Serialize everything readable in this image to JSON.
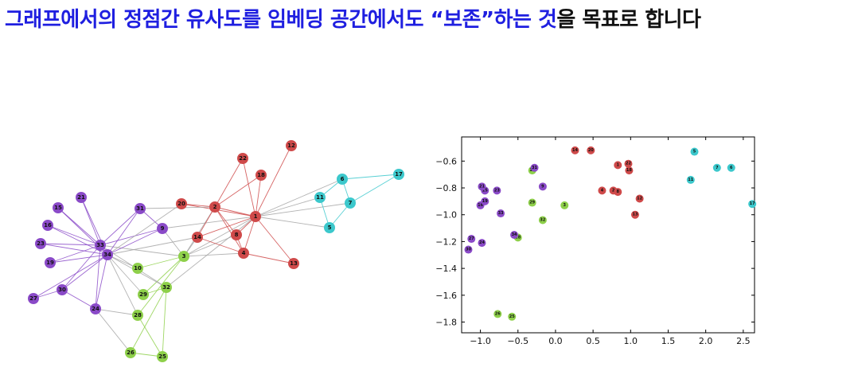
{
  "title": {
    "blue": "그래프에서의 정점간 유사도를 임베딩 공간에서도 “보존”하는 것",
    "black": "을 목표로 합니다"
  },
  "colors": {
    "red": "#cf4a4a",
    "cyan": "#3cc8cc",
    "purple": "#8a4ac8",
    "green": "#8ed04a",
    "gray": "#a6a6a6",
    "title_blue": "#1f1fe0"
  },
  "graph": {
    "nodes": [
      {
        "id": "1",
        "group": "red"
      },
      {
        "id": "2",
        "group": "red"
      },
      {
        "id": "3",
        "group": "green"
      },
      {
        "id": "4",
        "group": "red"
      },
      {
        "id": "5",
        "group": "cyan"
      },
      {
        "id": "6",
        "group": "cyan"
      },
      {
        "id": "7",
        "group": "cyan"
      },
      {
        "id": "8",
        "group": "red"
      },
      {
        "id": "9",
        "group": "purple"
      },
      {
        "id": "10",
        "group": "green"
      },
      {
        "id": "11",
        "group": "cyan"
      },
      {
        "id": "12",
        "group": "red"
      },
      {
        "id": "13",
        "group": "red"
      },
      {
        "id": "14",
        "group": "red"
      },
      {
        "id": "15",
        "group": "purple"
      },
      {
        "id": "16",
        "group": "purple"
      },
      {
        "id": "17",
        "group": "cyan"
      },
      {
        "id": "18",
        "group": "red"
      },
      {
        "id": "19",
        "group": "purple"
      },
      {
        "id": "20",
        "group": "red"
      },
      {
        "id": "21",
        "group": "purple"
      },
      {
        "id": "22",
        "group": "red"
      },
      {
        "id": "23",
        "group": "purple"
      },
      {
        "id": "24",
        "group": "purple"
      },
      {
        "id": "25",
        "group": "green"
      },
      {
        "id": "26",
        "group": "green"
      },
      {
        "id": "27",
        "group": "purple"
      },
      {
        "id": "28",
        "group": "green"
      },
      {
        "id": "29",
        "group": "green"
      },
      {
        "id": "30",
        "group": "purple"
      },
      {
        "id": "31",
        "group": "purple"
      },
      {
        "id": "32",
        "group": "green"
      },
      {
        "id": "33",
        "group": "purple"
      },
      {
        "id": "34",
        "group": "purple"
      }
    ]
  },
  "chart_data": {
    "type": "scatter",
    "xlim": [
      -1.25,
      2.65
    ],
    "ylim": [
      -1.88,
      -0.42
    ],
    "xticks": [
      -1.0,
      -0.5,
      0.0,
      0.5,
      1.0,
      1.5,
      2.0,
      2.5
    ],
    "xtick_labels": [
      "−1.0",
      "−0.5",
      "0.0",
      "0.5",
      "1.0",
      "1.5",
      "2.0",
      "2.5"
    ],
    "yticks": [
      -0.6,
      -0.8,
      -1.0,
      -1.2,
      -1.4,
      -1.6,
      -1.8
    ],
    "ytick_labels": [
      "−0.6",
      "−0.8",
      "−1.0",
      "−1.2",
      "−1.4",
      "−1.6",
      "−1.8"
    ],
    "grid": false,
    "points": [
      {
        "label": "1",
        "x": 0.83,
        "y": -0.63,
        "group": "red"
      },
      {
        "label": "2",
        "x": 0.77,
        "y": -0.82,
        "group": "red"
      },
      {
        "label": "3",
        "x": 0.12,
        "y": -0.93,
        "group": "green"
      },
      {
        "label": "4",
        "x": 0.62,
        "y": -0.82,
        "group": "red"
      },
      {
        "label": "5",
        "x": 1.85,
        "y": -0.53,
        "group": "cyan"
      },
      {
        "label": "6",
        "x": 2.34,
        "y": -0.65,
        "group": "cyan"
      },
      {
        "label": "7",
        "x": 2.15,
        "y": -0.65,
        "group": "cyan"
      },
      {
        "label": "8",
        "x": 0.83,
        "y": -0.83,
        "group": "red"
      },
      {
        "label": "9",
        "x": -0.17,
        "y": -0.79,
        "group": "purple"
      },
      {
        "label": "10",
        "x": -0.31,
        "y": -0.67,
        "group": "green"
      },
      {
        "label": "11",
        "x": 1.8,
        "y": -0.74,
        "group": "cyan"
      },
      {
        "label": "12",
        "x": 1.12,
        "y": -0.88,
        "group": "red"
      },
      {
        "label": "13",
        "x": 1.06,
        "y": -1.0,
        "group": "red"
      },
      {
        "label": "14",
        "x": 0.26,
        "y": -0.52,
        "group": "red"
      },
      {
        "label": "15",
        "x": -0.94,
        "y": -0.82,
        "group": "purple"
      },
      {
        "label": "16",
        "x": -1.0,
        "y": -0.93,
        "group": "purple"
      },
      {
        "label": "17",
        "x": 2.62,
        "y": -0.92,
        "group": "cyan"
      },
      {
        "label": "18",
        "x": 0.98,
        "y": -0.67,
        "group": "red"
      },
      {
        "label": "19",
        "x": -0.94,
        "y": -0.9,
        "group": "purple"
      },
      {
        "label": "20",
        "x": 0.47,
        "y": -0.52,
        "group": "red"
      },
      {
        "label": "21",
        "x": -0.98,
        "y": -0.79,
        "group": "purple"
      },
      {
        "label": "22",
        "x": 0.97,
        "y": -0.62,
        "group": "red"
      },
      {
        "label": "23",
        "x": -0.78,
        "y": -0.82,
        "group": "purple"
      },
      {
        "label": "24",
        "x": -0.98,
        "y": -1.21,
        "group": "purple"
      },
      {
        "label": "25",
        "x": -0.58,
        "y": -1.76,
        "group": "green"
      },
      {
        "label": "26",
        "x": -0.77,
        "y": -1.74,
        "group": "green"
      },
      {
        "label": "27",
        "x": -1.12,
        "y": -1.18,
        "group": "purple"
      },
      {
        "label": "28",
        "x": -0.5,
        "y": -1.17,
        "group": "green"
      },
      {
        "label": "29",
        "x": -0.31,
        "y": -0.91,
        "group": "green"
      },
      {
        "label": "30",
        "x": -1.16,
        "y": -1.26,
        "group": "purple"
      },
      {
        "label": "31",
        "x": -0.28,
        "y": -0.65,
        "group": "purple"
      },
      {
        "label": "32",
        "x": -0.17,
        "y": -1.04,
        "group": "green"
      },
      {
        "label": "33",
        "x": -0.73,
        "y": -0.99,
        "group": "purple"
      },
      {
        "label": "34",
        "x": -0.55,
        "y": -1.15,
        "group": "purple"
      }
    ]
  }
}
